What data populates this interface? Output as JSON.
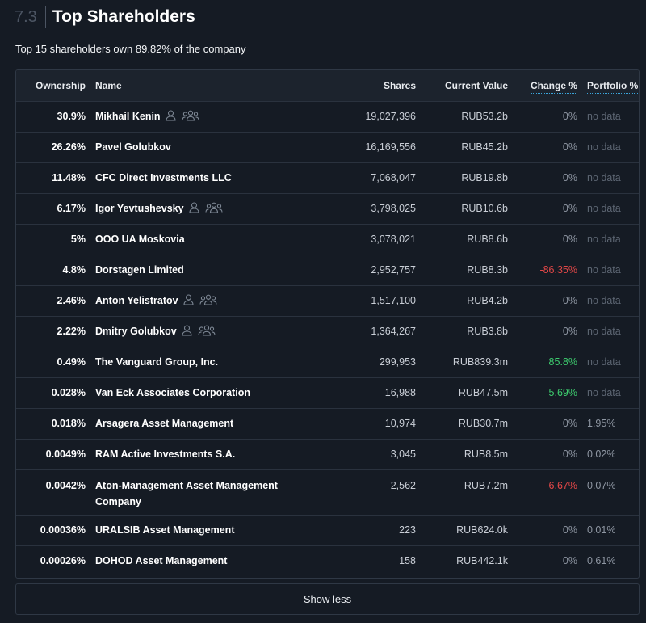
{
  "section": {
    "number": "7.3",
    "title": "Top Shareholders"
  },
  "subtitle": "Top 15 shareholders own 89.82% of the company",
  "columns": {
    "ownership": "Ownership",
    "name": "Name",
    "shares": "Shares",
    "current_value": "Current Value",
    "change": "Change %",
    "portfolio": "Portfolio %"
  },
  "rows": [
    {
      "ownership": "30.9%",
      "name": "Mikhail Kenin",
      "shares": "19,027,396",
      "value": "RUB53.2b",
      "change": "0%",
      "portfolio": "no data",
      "individual": true,
      "change_sign": "zero"
    },
    {
      "ownership": "26.26%",
      "name": "Pavel Golubkov",
      "shares": "16,169,556",
      "value": "RUB45.2b",
      "change": "0%",
      "portfolio": "no data",
      "individual": false,
      "change_sign": "zero"
    },
    {
      "ownership": "11.48%",
      "name": "CFC Direct Investments LLC",
      "shares": "7,068,047",
      "value": "RUB19.8b",
      "change": "0%",
      "portfolio": "no data",
      "individual": false,
      "change_sign": "zero"
    },
    {
      "ownership": "6.17%",
      "name": "Igor Yevtushevsky",
      "shares": "3,798,025",
      "value": "RUB10.6b",
      "change": "0%",
      "portfolio": "no data",
      "individual": true,
      "change_sign": "zero"
    },
    {
      "ownership": "5%",
      "name": "OOO UA Moskovia",
      "shares": "3,078,021",
      "value": "RUB8.6b",
      "change": "0%",
      "portfolio": "no data",
      "individual": false,
      "change_sign": "zero"
    },
    {
      "ownership": "4.8%",
      "name": "Dorstagen Limited",
      "shares": "2,952,757",
      "value": "RUB8.3b",
      "change": "-86.35%",
      "portfolio": "no data",
      "individual": false,
      "change_sign": "negative"
    },
    {
      "ownership": "2.46%",
      "name": "Anton Yelistratov",
      "shares": "1,517,100",
      "value": "RUB4.2b",
      "change": "0%",
      "portfolio": "no data",
      "individual": true,
      "change_sign": "zero"
    },
    {
      "ownership": "2.22%",
      "name": "Dmitry Golubkov",
      "shares": "1,364,267",
      "value": "RUB3.8b",
      "change": "0%",
      "portfolio": "no data",
      "individual": true,
      "change_sign": "zero"
    },
    {
      "ownership": "0.49%",
      "name": "The Vanguard Group, Inc.",
      "shares": "299,953",
      "value": "RUB839.3m",
      "change": "85.8%",
      "portfolio": "no data",
      "individual": false,
      "change_sign": "positive"
    },
    {
      "ownership": "0.028%",
      "name": "Van Eck Associates Corporation",
      "shares": "16,988",
      "value": "RUB47.5m",
      "change": "5.69%",
      "portfolio": "no data",
      "individual": false,
      "change_sign": "positive"
    },
    {
      "ownership": "0.018%",
      "name": "Arsagera Asset Management",
      "shares": "10,974",
      "value": "RUB30.7m",
      "change": "0%",
      "portfolio": "1.95%",
      "individual": false,
      "change_sign": "zero"
    },
    {
      "ownership": "0.0049%",
      "name": "RAM Active Investments S.A.",
      "shares": "3,045",
      "value": "RUB8.5m",
      "change": "0%",
      "portfolio": "0.02%",
      "individual": false,
      "change_sign": "zero"
    },
    {
      "ownership": "0.0042%",
      "name": "Aton-Management Asset Management Company",
      "shares": "2,562",
      "value": "RUB7.2m",
      "change": "-6.67%",
      "portfolio": "0.07%",
      "individual": false,
      "change_sign": "negative"
    },
    {
      "ownership": "0.00036%",
      "name": "URALSIB Asset Management",
      "shares": "223",
      "value": "RUB624.0k",
      "change": "0%",
      "portfolio": "0.01%",
      "individual": false,
      "change_sign": "zero"
    },
    {
      "ownership": "0.00026%",
      "name": "DOHOD Asset Management",
      "shares": "158",
      "value": "RUB442.1k",
      "change": "0%",
      "portfolio": "0.61%",
      "individual": false,
      "change_sign": "zero"
    }
  ],
  "icons": {
    "person": "person-icon",
    "group": "group-icon",
    "calendar": "calendar-icon"
  },
  "colors": {
    "background": "#151b24",
    "negative": "#e54848",
    "positive": "#3dcc6e",
    "muted": "#8e96a2",
    "link_underline": "#3aa4d9"
  },
  "show_less_label": "Show less"
}
